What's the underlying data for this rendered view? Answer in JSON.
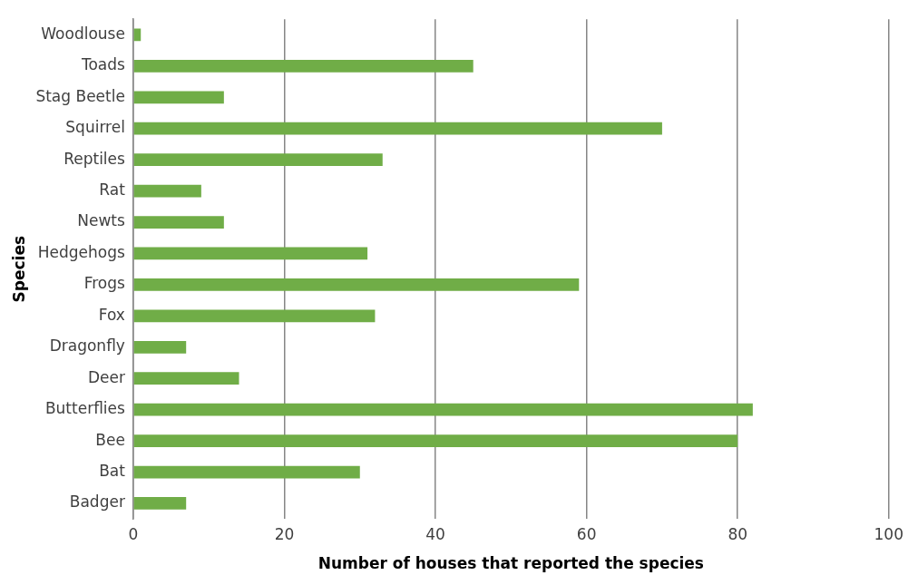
{
  "chart_data": {
    "type": "bar",
    "orientation": "horizontal",
    "xlabel": "Number of houses that reported the species",
    "ylabel": "Species",
    "categories": [
      "Woodlouse",
      "Toads",
      "Stag Beetle",
      "Squirrel",
      "Reptiles",
      "Rat",
      "Newts",
      "Hedgehogs",
      "Frogs",
      "Fox",
      "Dragonfly",
      "Deer",
      "Butterflies",
      "Bee",
      "Bat",
      "Badger"
    ],
    "values": [
      1,
      45,
      12,
      70,
      33,
      9,
      12,
      31,
      59,
      32,
      7,
      14,
      82,
      80,
      30,
      7
    ],
    "color": "#70ad47",
    "xlim": [
      0,
      100
    ],
    "xticks": [
      0,
      20,
      40,
      60,
      80,
      100
    ],
    "grid": "x",
    "legend": false
  }
}
